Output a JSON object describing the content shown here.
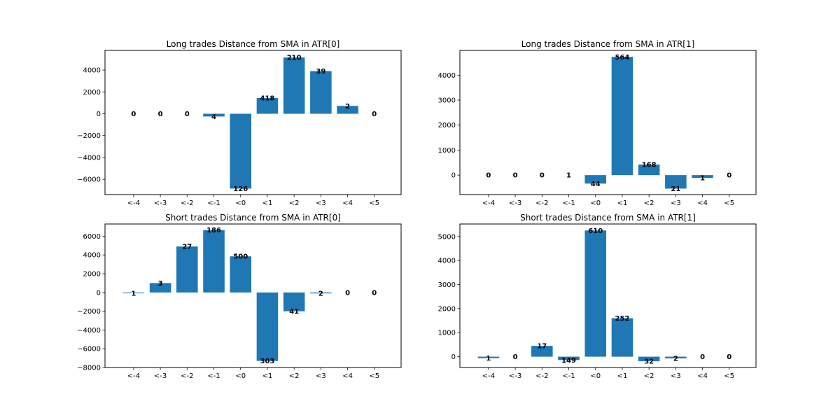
{
  "bar_color": "#1f77b4",
  "chart_data": [
    {
      "type": "bar",
      "title": "Long trades Distance from SMA in ATR[0]",
      "xlabel": "",
      "ylabel": "",
      "categories": [
        "<-4",
        "<-3",
        "<-2",
        "<-1",
        "<0",
        "<1",
        "<2",
        "<3",
        "<4",
        "<5"
      ],
      "values": [
        0,
        0,
        0,
        -250,
        -6850,
        1450,
        5150,
        3900,
        720,
        0
      ],
      "data_labels": [
        "0",
        "0",
        "0",
        "4",
        "126",
        "418",
        "210",
        "39",
        "2",
        "0"
      ],
      "ylim": [
        -7400,
        5800
      ],
      "yticks": [
        -6000,
        -4000,
        -2000,
        0,
        2000,
        4000
      ],
      "ytick_labels": [
        "−6000",
        "−4000",
        "−2000",
        "0",
        "2000",
        "4000"
      ],
      "grid": false
    },
    {
      "type": "bar",
      "title": "Long trades Distance from SMA in ATR[1]",
      "xlabel": "",
      "ylabel": "",
      "categories": [
        "<-4",
        "<-3",
        "<-2",
        "<-1",
        "<0",
        "<1",
        "<2",
        "<3",
        "<4",
        "<5"
      ],
      "values": [
        0,
        0,
        0,
        0,
        -340,
        4730,
        420,
        -540,
        -110,
        0
      ],
      "data_labels": [
        "0",
        "0",
        "0",
        "1",
        "44",
        "564",
        "168",
        "21",
        "1",
        "0"
      ],
      "ylim": [
        -780,
        4990
      ],
      "yticks": [
        0,
        1000,
        2000,
        3000,
        4000
      ],
      "ytick_labels": [
        "0",
        "1000",
        "2000",
        "3000",
        "4000"
      ],
      "grid": false
    },
    {
      "type": "bar",
      "title": "Short trades Distance from SMA in ATR[0]",
      "xlabel": "",
      "ylabel": "",
      "categories": [
        "<-4",
        "<-3",
        "<-2",
        "<-1",
        "<0",
        "<1",
        "<2",
        "<3",
        "<4",
        "<5"
      ],
      "values": [
        -70,
        1000,
        4900,
        6650,
        3850,
        -7300,
        -2000,
        -100,
        0,
        0
      ],
      "data_labels": [
        "1",
        "3",
        "27",
        "186",
        "500",
        "303",
        "41",
        "2",
        "0",
        "0"
      ],
      "ylim": [
        -8000,
        7300
      ],
      "yticks": [
        -8000,
        -6000,
        -4000,
        -2000,
        0,
        2000,
        4000,
        6000
      ],
      "ytick_labels": [
        "−8000",
        "−6000",
        "−4000",
        "−2000",
        "0",
        "2000",
        "4000",
        "6000"
      ],
      "grid": false
    },
    {
      "type": "bar",
      "title": "Short trades Distance from SMA in ATR[1]",
      "xlabel": "",
      "ylabel": "",
      "categories": [
        "<-4",
        "<-3",
        "<-2",
        "<-1",
        "<0",
        "<1",
        "<2",
        "<3",
        "<4",
        "<5"
      ],
      "values": [
        -60,
        0,
        450,
        -140,
        5250,
        1600,
        -190,
        -70,
        0,
        0
      ],
      "data_labels": [
        "1",
        "0",
        "17",
        "149",
        "610",
        "252",
        "32",
        "2",
        "0",
        "0"
      ],
      "ylim": [
        -450,
        5520
      ],
      "yticks": [
        0,
        1000,
        2000,
        3000,
        4000,
        5000
      ],
      "ytick_labels": [
        "0",
        "1000",
        "2000",
        "3000",
        "4000",
        "5000"
      ],
      "grid": false
    }
  ]
}
